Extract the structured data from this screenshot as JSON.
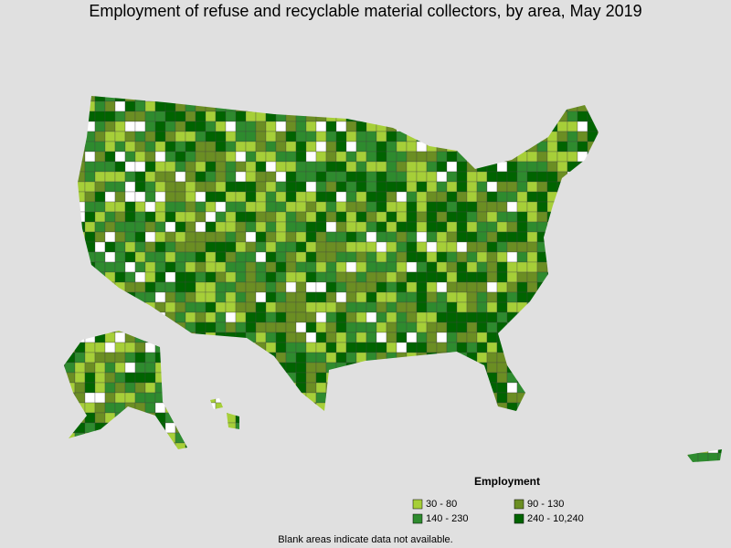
{
  "title": "Employment of refuse and recyclable material collectors, by area, May 2019",
  "legend": {
    "title": "Employment",
    "items": [
      {
        "label": "30 - 80",
        "color": "#a6cf38"
      },
      {
        "label": "90 - 130",
        "color": "#6b8e23"
      },
      {
        "label": "140 - 230",
        "color": "#2e8b2e"
      },
      {
        "label": "240 - 10,240",
        "color": "#006400"
      }
    ]
  },
  "note": "Blank areas indicate data not available."
}
